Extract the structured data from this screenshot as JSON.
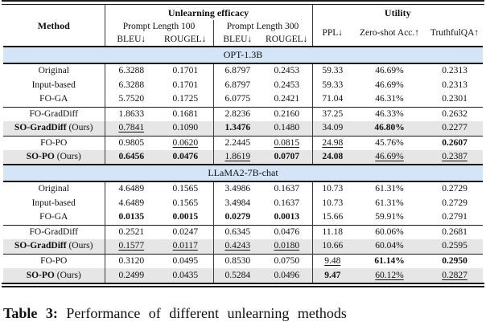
{
  "header": {
    "method": "Method",
    "efficacy": "Unlearning efficacy",
    "utility": "Utility",
    "pl100": "Prompt Length 100",
    "pl300": "Prompt Length 300",
    "bleu": "BLEU↓",
    "rougel": "ROUGEL↓",
    "ppl": "PPL↓",
    "zeroshot": "Zero-shot Acc.↑",
    "truthfulqa": "TruthfulQA↑"
  },
  "colors": {
    "section_band": "#d3e5f6",
    "ours_row": "#e6e6e6"
  },
  "sections": [
    {
      "name": "OPT-1.3B",
      "groups": [
        {
          "rows": [
            {
              "method": "Original",
              "suffix": "",
              "method_bold": false,
              "ours": false,
              "values": [
                "6.3288",
                "0.1701",
                "6.8797",
                "0.2453",
                "59.33",
                "46.69%",
                "0.2313"
              ],
              "styles": [
                "",
                "",
                "",
                "",
                "",
                "",
                ""
              ]
            },
            {
              "method": "Input-based",
              "suffix": "",
              "method_bold": false,
              "ours": false,
              "values": [
                "6.3288",
                "0.1701",
                "6.8797",
                "0.2453",
                "59.33",
                "46.69%",
                "0.2313"
              ],
              "styles": [
                "",
                "",
                "",
                "",
                "",
                "",
                ""
              ]
            },
            {
              "method": "FO-GA",
              "suffix": "",
              "method_bold": false,
              "ours": false,
              "values": [
                "5.7520",
                "0.1725",
                "6.0775",
                "0.2421",
                "71.04",
                "46.31%",
                "0.2301"
              ],
              "styles": [
                "",
                "",
                "",
                "",
                "",
                "",
                ""
              ]
            }
          ]
        },
        {
          "rows": [
            {
              "method": "FO-GradDiff",
              "suffix": "",
              "method_bold": false,
              "ours": false,
              "values": [
                "1.8633",
                "0.1681",
                "2.8236",
                "0.2160",
                "37.25",
                "46.33%",
                "0.2632"
              ],
              "styles": [
                "",
                "",
                "",
                "",
                "",
                "",
                ""
              ]
            },
            {
              "method": "SO-GradDiff",
              "suffix": " (Ours)",
              "method_bold": true,
              "ours": true,
              "values": [
                "0.7841",
                "0.1090",
                "1.3476",
                "0.1480",
                "34.09",
                "46.80%",
                "0.2277"
              ],
              "styles": [
                "u",
                "",
                "b",
                "",
                "",
                "b",
                ""
              ]
            }
          ]
        },
        {
          "rows": [
            {
              "method": "FO-PO",
              "suffix": "",
              "method_bold": false,
              "ours": false,
              "values": [
                "0.9805",
                "0.0620",
                "2.2445",
                "0.0815",
                "24.98",
                "45.76%",
                "0.2607"
              ],
              "styles": [
                "",
                "u",
                "",
                "u",
                "u",
                "",
                "b"
              ]
            },
            {
              "method": "SO-PO",
              "suffix": " (Ours)",
              "method_bold": true,
              "ours": true,
              "values": [
                "0.6456",
                "0.0476",
                "1.8619",
                "0.0707",
                "24.08",
                "46.69%",
                "0.2387"
              ],
              "styles": [
                "b",
                "b",
                "u",
                "b",
                "b",
                "u",
                "u"
              ]
            }
          ]
        }
      ]
    },
    {
      "name": "LLaMA2-7B-chat",
      "groups": [
        {
          "rows": [
            {
              "method": "Original",
              "suffix": "",
              "method_bold": false,
              "ours": false,
              "values": [
                "4.6489",
                "0.1565",
                "3.4986",
                "0.1637",
                "10.73",
                "61.31%",
                "0.2729"
              ],
              "styles": [
                "",
                "",
                "",
                "",
                "",
                "",
                ""
              ]
            },
            {
              "method": "Input-based",
              "suffix": "",
              "method_bold": false,
              "ours": false,
              "values": [
                "4.6489",
                "0.1565",
                "3.4984",
                "0.1637",
                "10.73",
                "61.31%",
                "0.2729"
              ],
              "styles": [
                "",
                "",
                "",
                "",
                "",
                "",
                ""
              ]
            },
            {
              "method": "FO-GA",
              "suffix": "",
              "method_bold": false,
              "ours": false,
              "values": [
                "0.0135",
                "0.0015",
                "0.0279",
                "0.0013",
                "15.66",
                "59.91%",
                "0.2791"
              ],
              "styles": [
                "b",
                "b",
                "b",
                "b",
                "",
                "",
                ""
              ]
            }
          ]
        },
        {
          "rows": [
            {
              "method": "FO-GradDiff",
              "suffix": "",
              "method_bold": false,
              "ours": false,
              "values": [
                "0.2521",
                "0.0247",
                "0.6345",
                "0.0476",
                "11.18",
                "60.06%",
                "0.2681"
              ],
              "styles": [
                "",
                "",
                "",
                "",
                "",
                "",
                ""
              ]
            },
            {
              "method": "SO-GradDiff",
              "suffix": " (Ours)",
              "method_bold": true,
              "ours": true,
              "values": [
                "0.1577",
                "0.0117",
                "0.4243",
                "0.0180",
                "10.66",
                "60.04%",
                "0.2595"
              ],
              "styles": [
                "u",
                "u",
                "u",
                "u",
                "",
                "",
                ""
              ]
            }
          ]
        },
        {
          "rows": [
            {
              "method": "FO-PO",
              "suffix": "",
              "method_bold": false,
              "ours": false,
              "values": [
                "0.3120",
                "0.0495",
                "0.8530",
                "0.0750",
                "9.48",
                "61.14%",
                "0.2950"
              ],
              "styles": [
                "",
                "",
                "",
                "",
                "u",
                "b",
                "b"
              ]
            },
            {
              "method": "SO-PO",
              "suffix": " (Ours)",
              "method_bold": true,
              "ours": true,
              "values": [
                "0.2499",
                "0.0435",
                "0.5284",
                "0.0496",
                "9.47",
                "60.12%",
                "0.2827"
              ],
              "styles": [
                "",
                "",
                "",
                "",
                "b",
                "u",
                "u"
              ]
            }
          ]
        }
      ]
    }
  ],
  "caption": {
    "label": "Table 3:",
    "text": "Performance of different unlearning methods"
  }
}
